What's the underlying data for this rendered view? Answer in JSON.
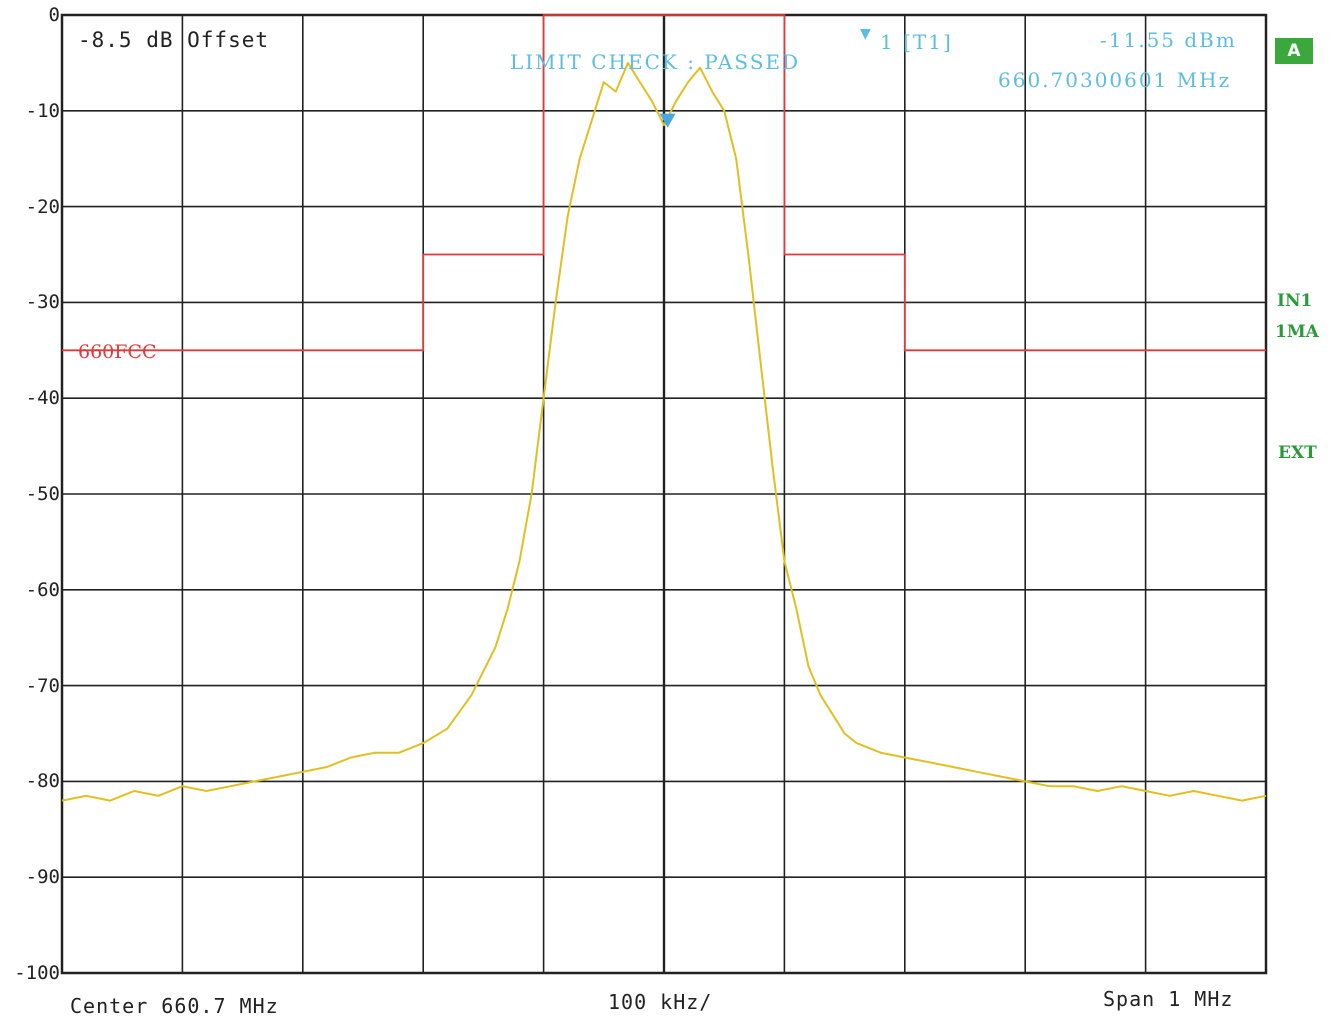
{
  "header": {
    "offset_text": "-8.5 dB Offset",
    "limit_check": "LIMIT CHECK  :  PASSED",
    "marker_label": "1  [T1]",
    "marker_level": "-11.55 dBm",
    "marker_freq": "660.70300601 MHz"
  },
  "side": {
    "badge": "A",
    "tags": [
      "IN1",
      "1MA",
      "EXT"
    ]
  },
  "limit_line_name": "660FCC",
  "footer": {
    "center": "Center 660.7 MHz",
    "div": "100 kHz/",
    "span": "Span 1 MHz"
  },
  "colors": {
    "trace": "#e0c020",
    "limit": "#e03a3a",
    "marker": "#4aa8e0",
    "status": "#2a9a3a",
    "grid": "#222222"
  },
  "chart_data": {
    "type": "line",
    "title": "",
    "xlabel": "",
    "ylabel": "",
    "units": {
      "x": "MHz",
      "y": "dBm"
    },
    "xlim": [
      660.2,
      661.2
    ],
    "ylim": [
      -100,
      0
    ],
    "y_ticks": [
      0,
      -10,
      -20,
      -30,
      -40,
      -50,
      -60,
      -70,
      -80,
      -90,
      -100
    ],
    "grid": true,
    "limit_line": {
      "name": "660FCC",
      "x": [
        660.2,
        660.5,
        660.5,
        660.6,
        660.6,
        660.8,
        660.8,
        660.9,
        660.9,
        661.2
      ],
      "y": [
        -35,
        -35,
        -25,
        -25,
        0,
        0,
        -25,
        -25,
        -35,
        -35
      ]
    },
    "marker": {
      "label": "1",
      "x": 660.70300601,
      "y": -11.55
    },
    "series": [
      {
        "x": [
          660.2,
          660.22,
          660.24,
          660.26,
          660.28,
          660.3,
          660.32,
          660.34,
          660.36,
          660.38,
          660.4,
          660.42,
          660.44,
          660.46,
          660.48,
          660.5,
          660.52,
          660.54,
          660.55,
          660.56,
          660.57,
          660.58,
          660.59,
          660.6,
          660.61,
          660.62,
          660.63,
          660.64,
          660.65,
          660.66,
          660.67,
          660.68,
          660.69,
          660.7,
          660.71,
          660.72,
          660.73,
          660.74,
          660.75,
          660.76,
          660.77,
          660.78,
          660.79,
          660.8,
          660.81,
          660.82,
          660.83,
          660.84,
          660.85,
          660.86,
          660.88,
          660.9,
          660.92,
          660.94,
          660.96,
          660.98,
          661.0,
          661.02,
          661.04,
          661.06,
          661.08,
          661.1,
          661.12,
          661.14,
          661.16,
          661.18,
          661.2
        ],
        "y": [
          -82,
          -81.5,
          -82,
          -81,
          -81.5,
          -80.5,
          -81,
          -80.5,
          -80,
          -79.5,
          -79,
          -78.5,
          -77.5,
          -77,
          -77,
          -76,
          -74.5,
          -71,
          -68.5,
          -66,
          -62,
          -57,
          -50,
          -40,
          -30,
          -21,
          -15,
          -11,
          -7,
          -8,
          -5,
          -7,
          -9,
          -11.5,
          -9,
          -7,
          -5.5,
          -8,
          -10,
          -15,
          -25,
          -36,
          -47,
          -57,
          -62,
          -68,
          -71,
          -73,
          -75,
          -76,
          -77,
          -77.5,
          -78,
          -78.5,
          -79,
          -79.5,
          -80,
          -80.5,
          -80.5,
          -81,
          -80.5,
          -81,
          -81.5,
          -81,
          -81.5,
          -82,
          -81.5
        ]
      }
    ]
  }
}
